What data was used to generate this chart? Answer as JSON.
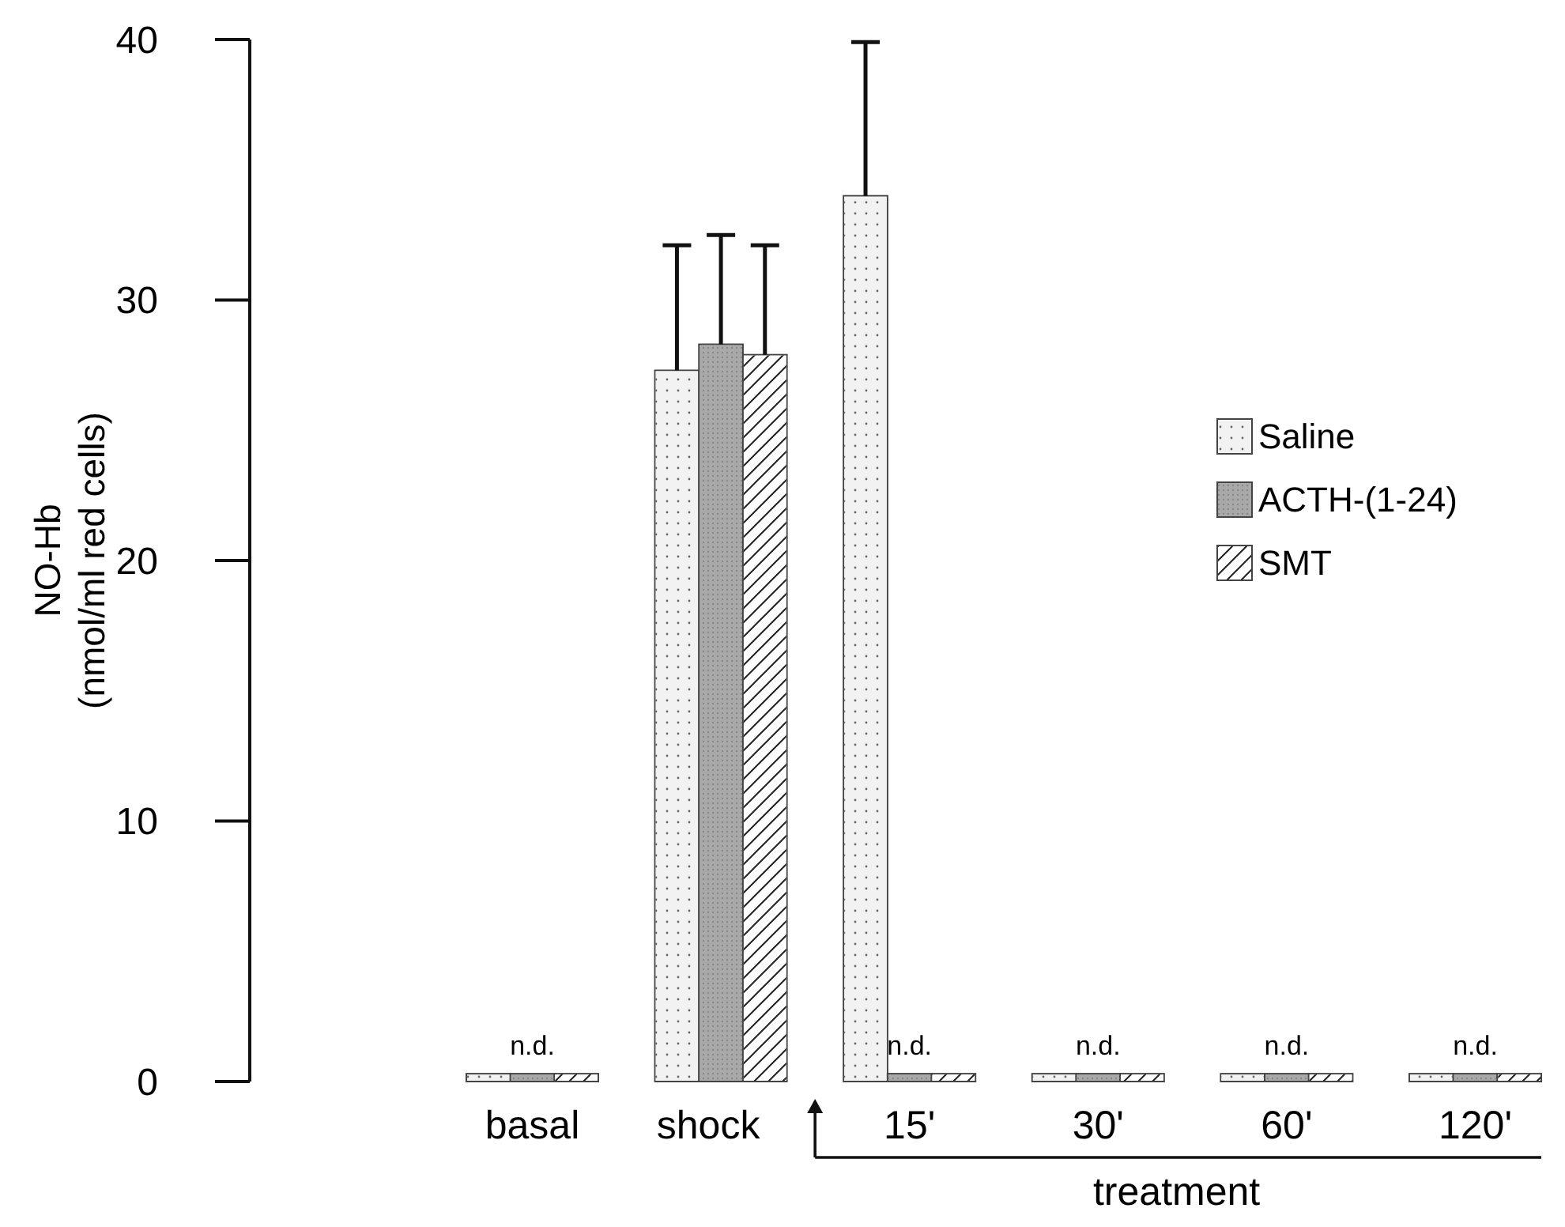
{
  "chart_data": {
    "type": "bar",
    "ylabel": "NO-Hb\n(nmol/ml red cells)",
    "categories": [
      "basal",
      "shock",
      "15'",
      "30'",
      "60'",
      "120'"
    ],
    "series": [
      {
        "name": "Saline",
        "color": "#f2f2f2",
        "values": [
          0.3,
          27.3,
          34.0,
          0.3,
          0.3,
          0.3
        ],
        "errors": [
          null,
          [
            27.3,
            32.1
          ],
          [
            34.0,
            39.9
          ],
          null,
          null,
          null
        ]
      },
      {
        "name": "ACTH-(1-24)",
        "color": "#a9a9a9",
        "values": [
          0.3,
          28.3,
          0.3,
          0.3,
          0.3,
          0.3
        ],
        "errors": [
          null,
          [
            28.3,
            32.5
          ],
          null,
          null,
          null,
          null
        ],
        "value_labels": [
          "n.d.",
          null,
          "n.d.",
          "n.d.",
          "n.d.",
          "n.d."
        ]
      },
      {
        "name": "SMT",
        "color": "#ffffff",
        "values": [
          0.3,
          27.9,
          0.3,
          0.3,
          0.3,
          0.3
        ],
        "errors": [
          null,
          [
            27.9,
            32.1
          ],
          null,
          null,
          null,
          null
        ]
      }
    ],
    "ylim": [
      0,
      40
    ],
    "yticks": [
      0,
      10,
      20,
      30,
      40
    ],
    "grid": false,
    "legend": "right",
    "annotations": [
      "treatment"
    ]
  }
}
